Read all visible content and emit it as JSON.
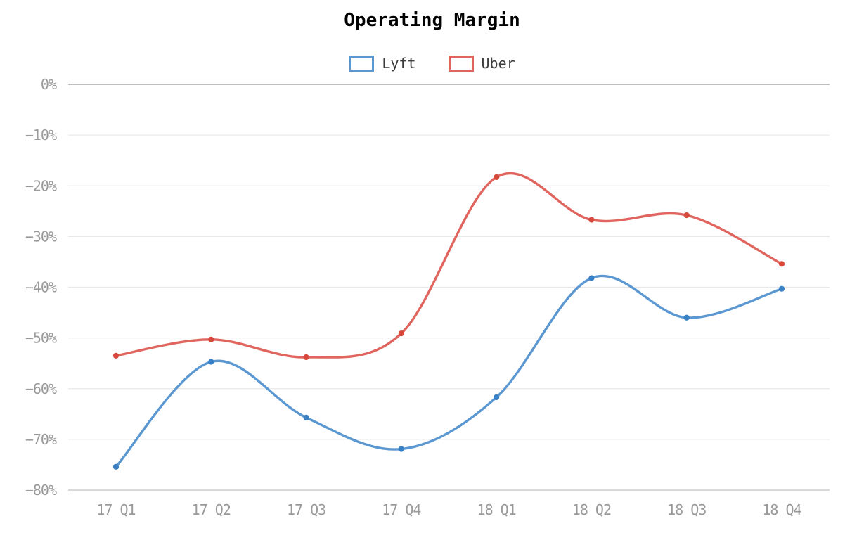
{
  "chart_data": {
    "type": "line",
    "title": "Operating Margin",
    "xlabel": "",
    "ylabel": "",
    "categories": [
      "17 Q1",
      "17 Q2",
      "17 Q3",
      "17 Q4",
      "18 Q1",
      "18 Q2",
      "18 Q3",
      "18 Q4"
    ],
    "series": [
      {
        "name": "Lyft",
        "line_color": "#5b98d1",
        "point_color": "#3a80c4",
        "values": [
          -75.4,
          -54.7,
          -65.7,
          -71.9,
          -61.7,
          -38.2,
          -46.0,
          -40.3
        ]
      },
      {
        "name": "Uber",
        "line_color": "#e0655e",
        "point_color": "#d64a3d",
        "values": [
          -53.5,
          -50.3,
          -53.8,
          -49.1,
          -18.3,
          -26.7,
          -25.8,
          -35.4
        ]
      }
    ],
    "ylim": [
      -80,
      0
    ],
    "y_ticks": [
      0,
      -10,
      -20,
      -30,
      -40,
      -50,
      -60,
      -70,
      -80
    ],
    "y_tick_labels": [
      "0%",
      "−10%",
      "−20%",
      "−30%",
      "−40%",
      "−50%",
      "−60%",
      "−70%",
      "−80%"
    ],
    "grid": true,
    "curve": "smooth-catmull-rom",
    "legend_position": "top",
    "colors": {
      "grid_line": "#e8e8e8",
      "zero_line": "#a8a8a8",
      "baseline": "#c2c2c2",
      "tick_text": "#9a9a9a",
      "legend_text": "#3d3d3d",
      "title_text": "#000000",
      "background": "#ffffff"
    }
  }
}
